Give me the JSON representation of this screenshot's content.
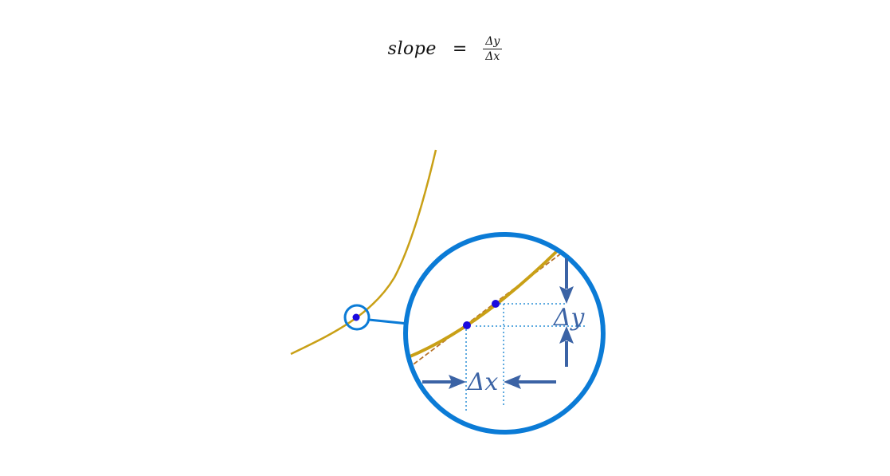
{
  "formula": {
    "lhs": "slope",
    "equals": "=",
    "numerator": "Δy",
    "denominator": "Δx"
  },
  "labels": {
    "delta_x": "Δx",
    "delta_y": "Δy"
  },
  "colors": {
    "curve": "#c9a016",
    "tangent": "#b8742a",
    "circle": "#0b7bd6",
    "arrow": "#3b63a5",
    "point": "#1a0adf",
    "guide": "#2a8fd6"
  }
}
